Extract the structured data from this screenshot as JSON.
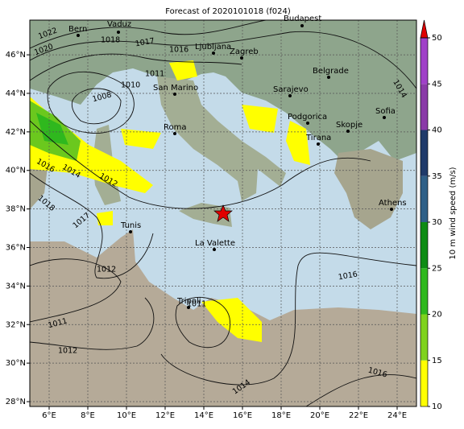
{
  "title": "Forecast of 2020101018 (f024)",
  "map": {
    "xlim": [
      5,
      25
    ],
    "ylim": [
      27.75,
      47.8
    ],
    "xticks": [
      {
        "value": 6,
        "label": "6°E"
      },
      {
        "value": 8,
        "label": "8°E"
      },
      {
        "value": 10,
        "label": "10°E"
      },
      {
        "value": 12,
        "label": "12°E"
      },
      {
        "value": 14,
        "label": "14°E"
      },
      {
        "value": 16,
        "label": "16°E"
      },
      {
        "value": 18,
        "label": "18°E"
      },
      {
        "value": 20,
        "label": "20°E"
      },
      {
        "value": 22,
        "label": "22°E"
      },
      {
        "value": 24,
        "label": "24°E"
      }
    ],
    "yticks": [
      {
        "value": 28,
        "label": "28°N"
      },
      {
        "value": 30,
        "label": "30°N"
      },
      {
        "value": 32,
        "label": "32°N"
      },
      {
        "value": 34,
        "label": "34°N"
      },
      {
        "value": 36,
        "label": "36°N"
      },
      {
        "value": 38,
        "label": "38°N"
      },
      {
        "value": 40,
        "label": "40°N"
      },
      {
        "value": 42,
        "label": "42°N"
      },
      {
        "value": 44,
        "label": "44°N"
      },
      {
        "value": 46,
        "label": "46°N"
      }
    ],
    "grid": true,
    "cities": [
      "Bern",
      "Vaduz",
      "Budapest",
      "Ljubljana",
      "Zagreb",
      "San Marino",
      "Belgrade",
      "Sarajevo",
      "Sofia",
      "Roma",
      "Podgorica",
      "Skopje",
      "Tirana",
      "Athens",
      "Tunis",
      "La Valette",
      "Tripoli"
    ],
    "isobar_labels": [
      "1022",
      "1020",
      "1018",
      "1017",
      "1016",
      "1010",
      "1011",
      "1008",
      "1016",
      "1014",
      "1012",
      "1018",
      "1017",
      "1012",
      "1011",
      "1012",
      "1016",
      "1014",
      "1016",
      "1011",
      "1014"
    ]
  },
  "colorbar": {
    "label": "10 m wind speed (m/s)",
    "lim": [
      10,
      50
    ],
    "ticks": [
      10,
      15,
      20,
      25,
      30,
      35,
      40,
      45,
      50
    ],
    "colors": [
      "#ffff00",
      "#7fd21e",
      "#2fb81e",
      "#0e8c14",
      "#2f6088",
      "#1f3a6a",
      "#8a3aa8",
      "#a040c8"
    ],
    "extend_color": "#e00000"
  }
}
